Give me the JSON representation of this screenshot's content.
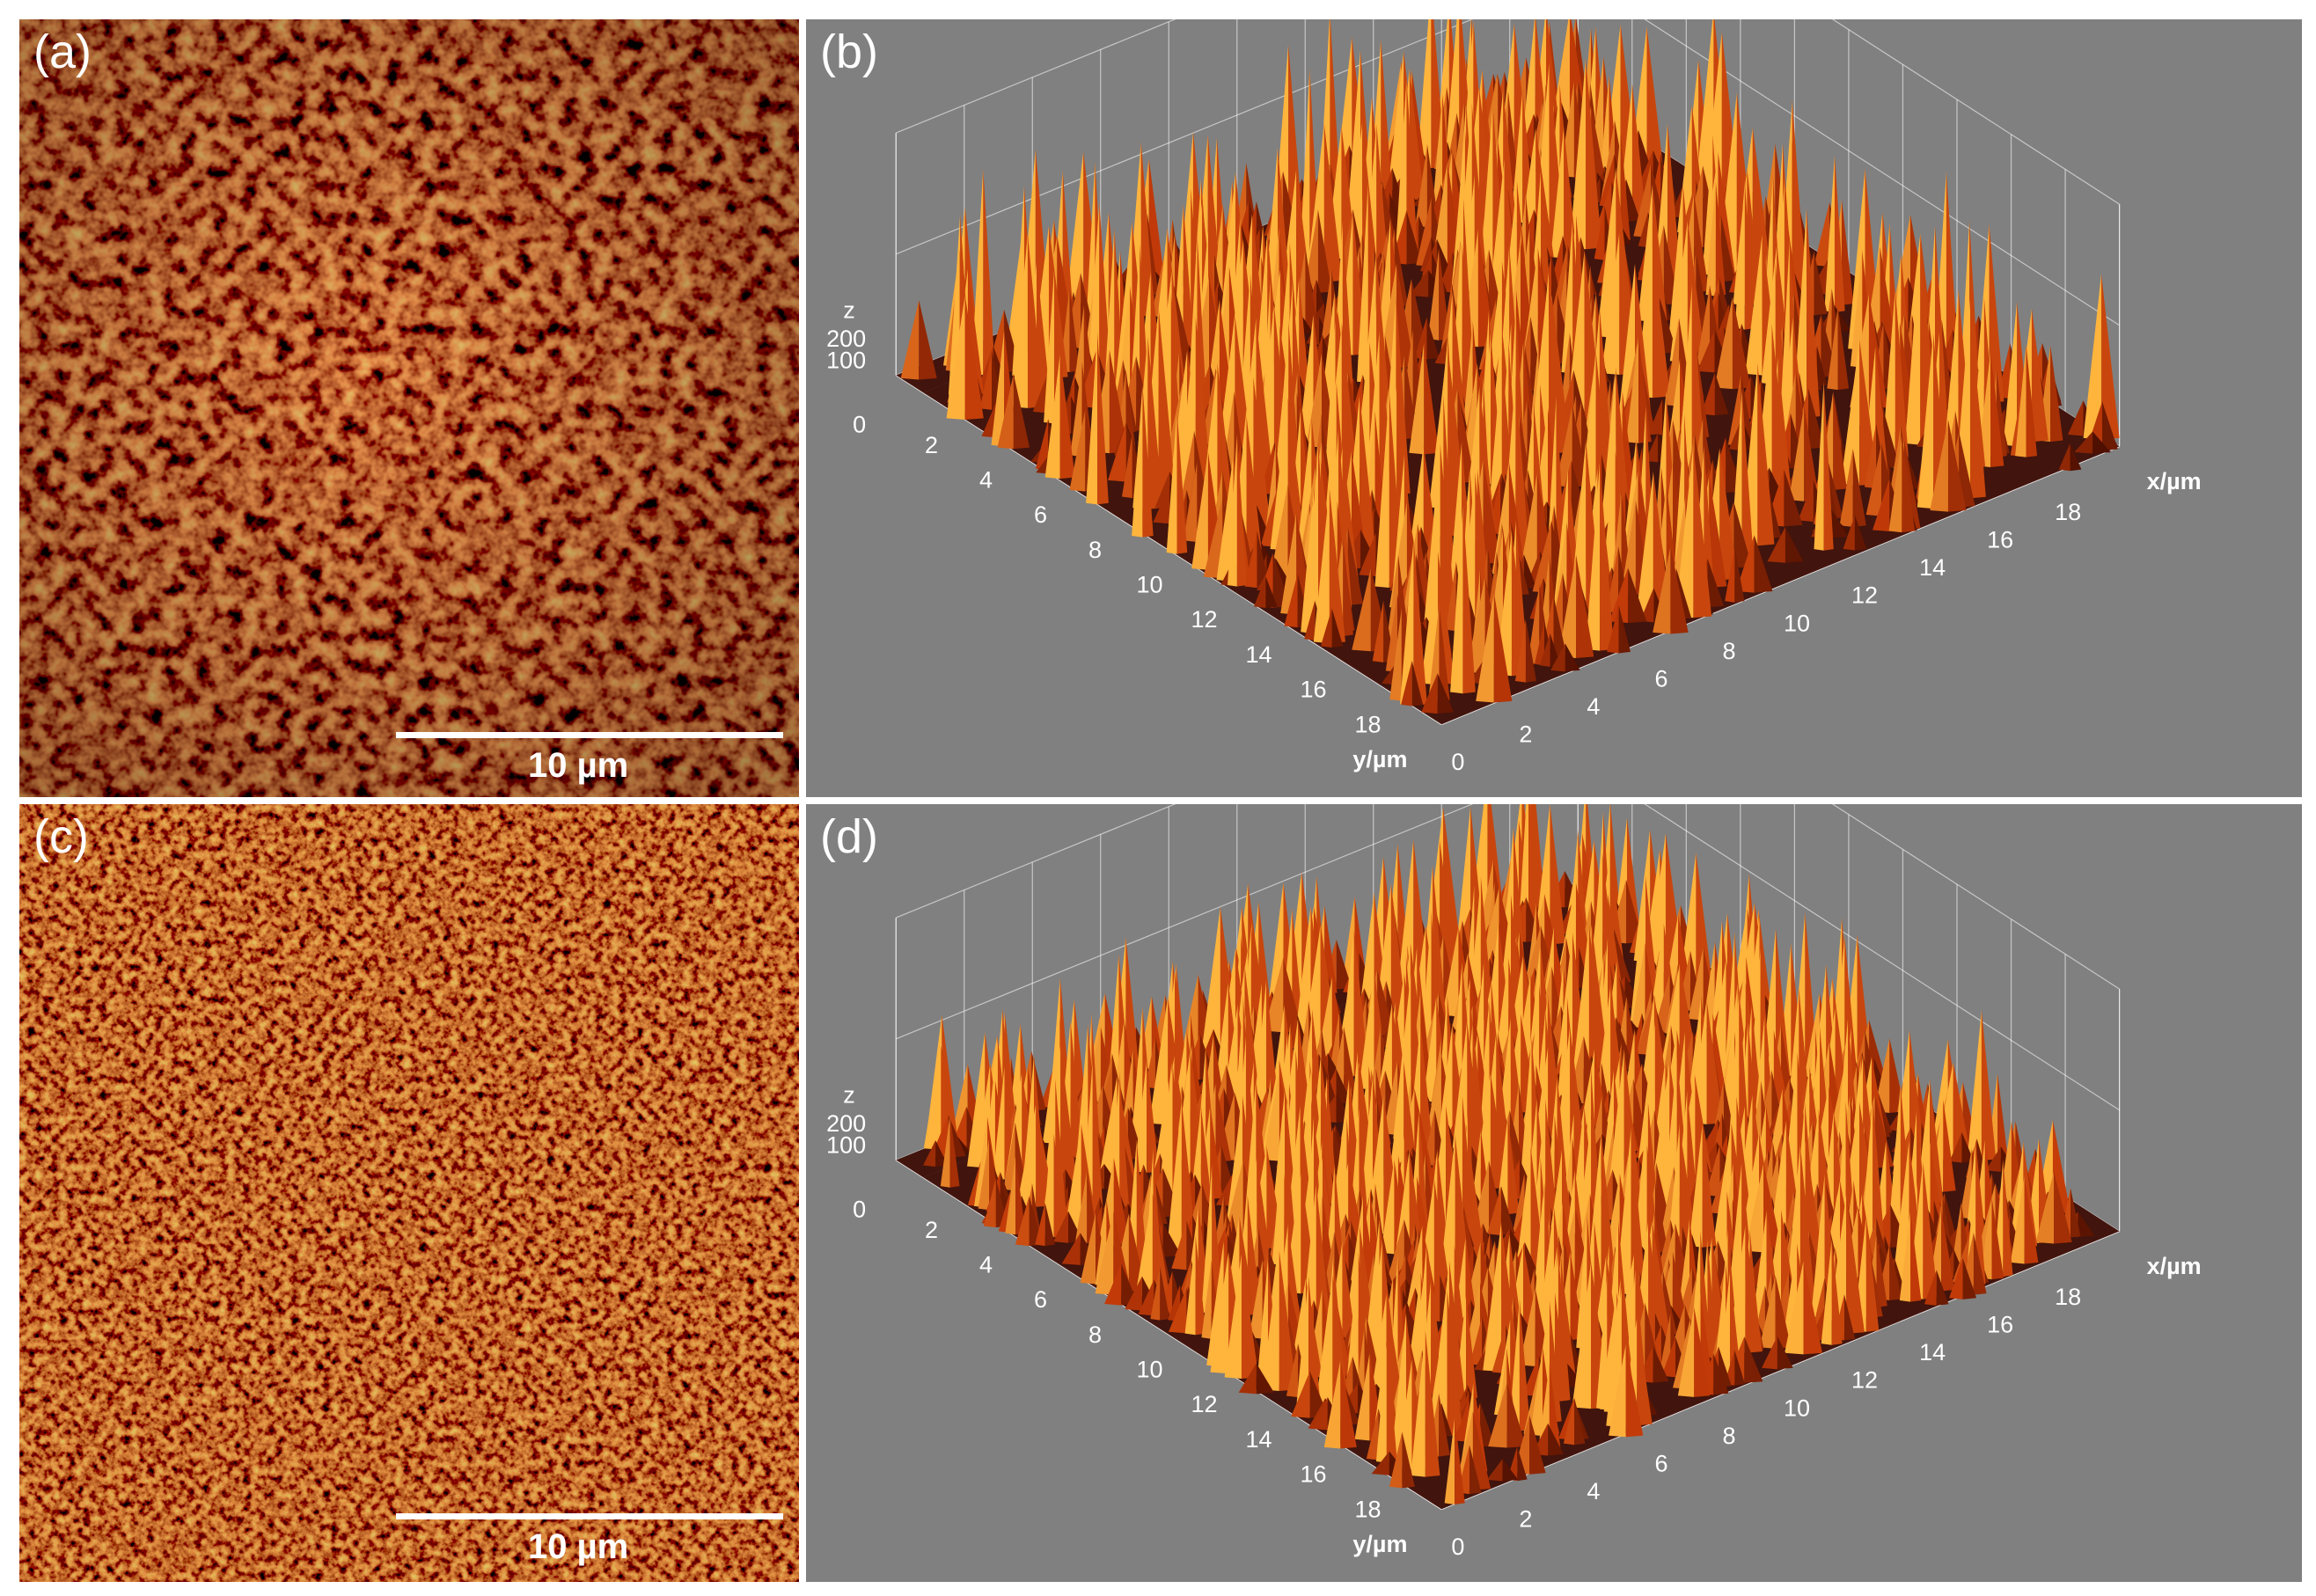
{
  "panels": [
    {
      "id": "a",
      "label": "(a)",
      "type": "image",
      "scale_label": "10 µm"
    },
    {
      "id": "b",
      "label": "(b)",
      "type": "surface3d",
      "z_label": "z",
      "x_label": "x/µm",
      "y_label": "y/µm",
      "z_ticks": [
        "0",
        "100",
        "200"
      ],
      "x_ticks": [
        "0",
        "2",
        "4",
        "6",
        "8",
        "10",
        "12",
        "14",
        "16",
        "18"
      ],
      "y_ticks": [
        "2",
        "4",
        "6",
        "8",
        "10",
        "12",
        "14",
        "16",
        "18"
      ]
    },
    {
      "id": "c",
      "label": "(c)",
      "type": "image",
      "scale_label": "10 µm"
    },
    {
      "id": "d",
      "label": "(d)",
      "type": "surface3d",
      "z_label": "z",
      "x_label": "x/µm",
      "y_label": "y/µm",
      "z_ticks": [
        "0",
        "100",
        "200"
      ],
      "x_ticks": [
        "0",
        "2",
        "4",
        "6",
        "8",
        "10",
        "12",
        "14",
        "16",
        "18"
      ],
      "y_ticks": [
        "2",
        "4",
        "6",
        "8",
        "10",
        "12",
        "14",
        "16",
        "18"
      ]
    }
  ],
  "colors": {
    "surface_dark": "#3a0800",
    "surface_mid": "#c23a08",
    "surface_light": "#ffb43c",
    "background_3d": "#808080"
  }
}
